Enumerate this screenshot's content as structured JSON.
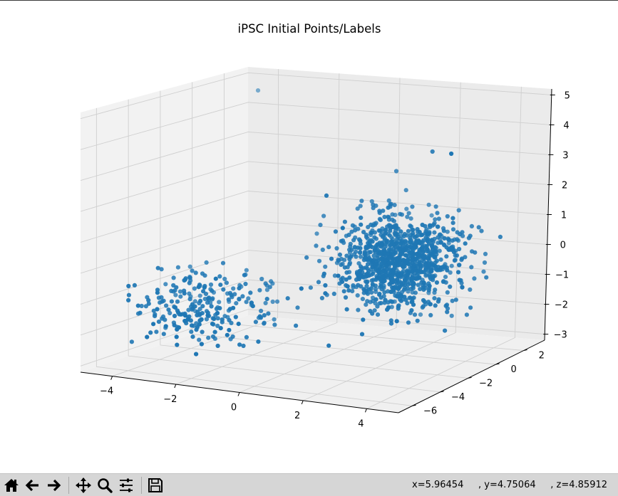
{
  "chart_data": {
    "type": "scatter",
    "projection": "3d",
    "title": "iPSC Initial Points/Labels",
    "xlabel": "",
    "ylabel": "",
    "zlabel": "",
    "xlim": [
      -5,
      5
    ],
    "ylim": [
      -7,
      3.5
    ],
    "zlim": [
      -3.2,
      5.2
    ],
    "x_ticks": [
      "−4",
      "−2",
      "0",
      "2",
      "4"
    ],
    "x_tick_values": [
      -4,
      -2,
      0,
      2,
      4
    ],
    "y_ticks": [
      "−6",
      "−4",
      "−2",
      "0",
      "2"
    ],
    "y_tick_values": [
      -6,
      -4,
      -2,
      0,
      2
    ],
    "z_ticks": [
      "−3",
      "−2",
      "−1",
      "0",
      "1",
      "2",
      "3",
      "4",
      "5"
    ],
    "z_tick_values": [
      -3,
      -2,
      -1,
      0,
      1,
      2,
      3,
      4,
      5
    ],
    "grid": true,
    "point_color": "#1f77b4",
    "clusters": [
      {
        "name": "",
        "center": [
          2.0,
          -0.5,
          0.0
        ],
        "spread": [
          0.9,
          0.9,
          0.75
        ],
        "count": 1100
      },
      {
        "name": "",
        "center": [
          -3.0,
          -3.0,
          -1.5
        ],
        "spread": [
          1.0,
          1.3,
          0.55
        ],
        "count": 260
      }
    ],
    "outliers": [
      [
        -4.2,
        2.6,
        4.6
      ],
      [
        3.1,
        -0.6,
        3.7
      ],
      [
        4.6,
        -2.5,
        4.1
      ],
      [
        0.9,
        -2.9,
        -2.4
      ]
    ]
  },
  "toolbar": {
    "buttons": [
      {
        "name": "home-button",
        "icon": "home-icon"
      },
      {
        "name": "back-button",
        "icon": "arrow-left-icon"
      },
      {
        "name": "forward-button",
        "icon": "arrow-right-icon"
      },
      {
        "name": "pan-button",
        "icon": "move-icon"
      },
      {
        "name": "zoom-button",
        "icon": "magnifier-icon"
      },
      {
        "name": "configure-subplots-button",
        "icon": "sliders-icon"
      },
      {
        "name": "save-button",
        "icon": "floppy-disk-icon"
      }
    ],
    "coords_text": "x=5.96454     , y=4.75064     , z=4.85912"
  }
}
